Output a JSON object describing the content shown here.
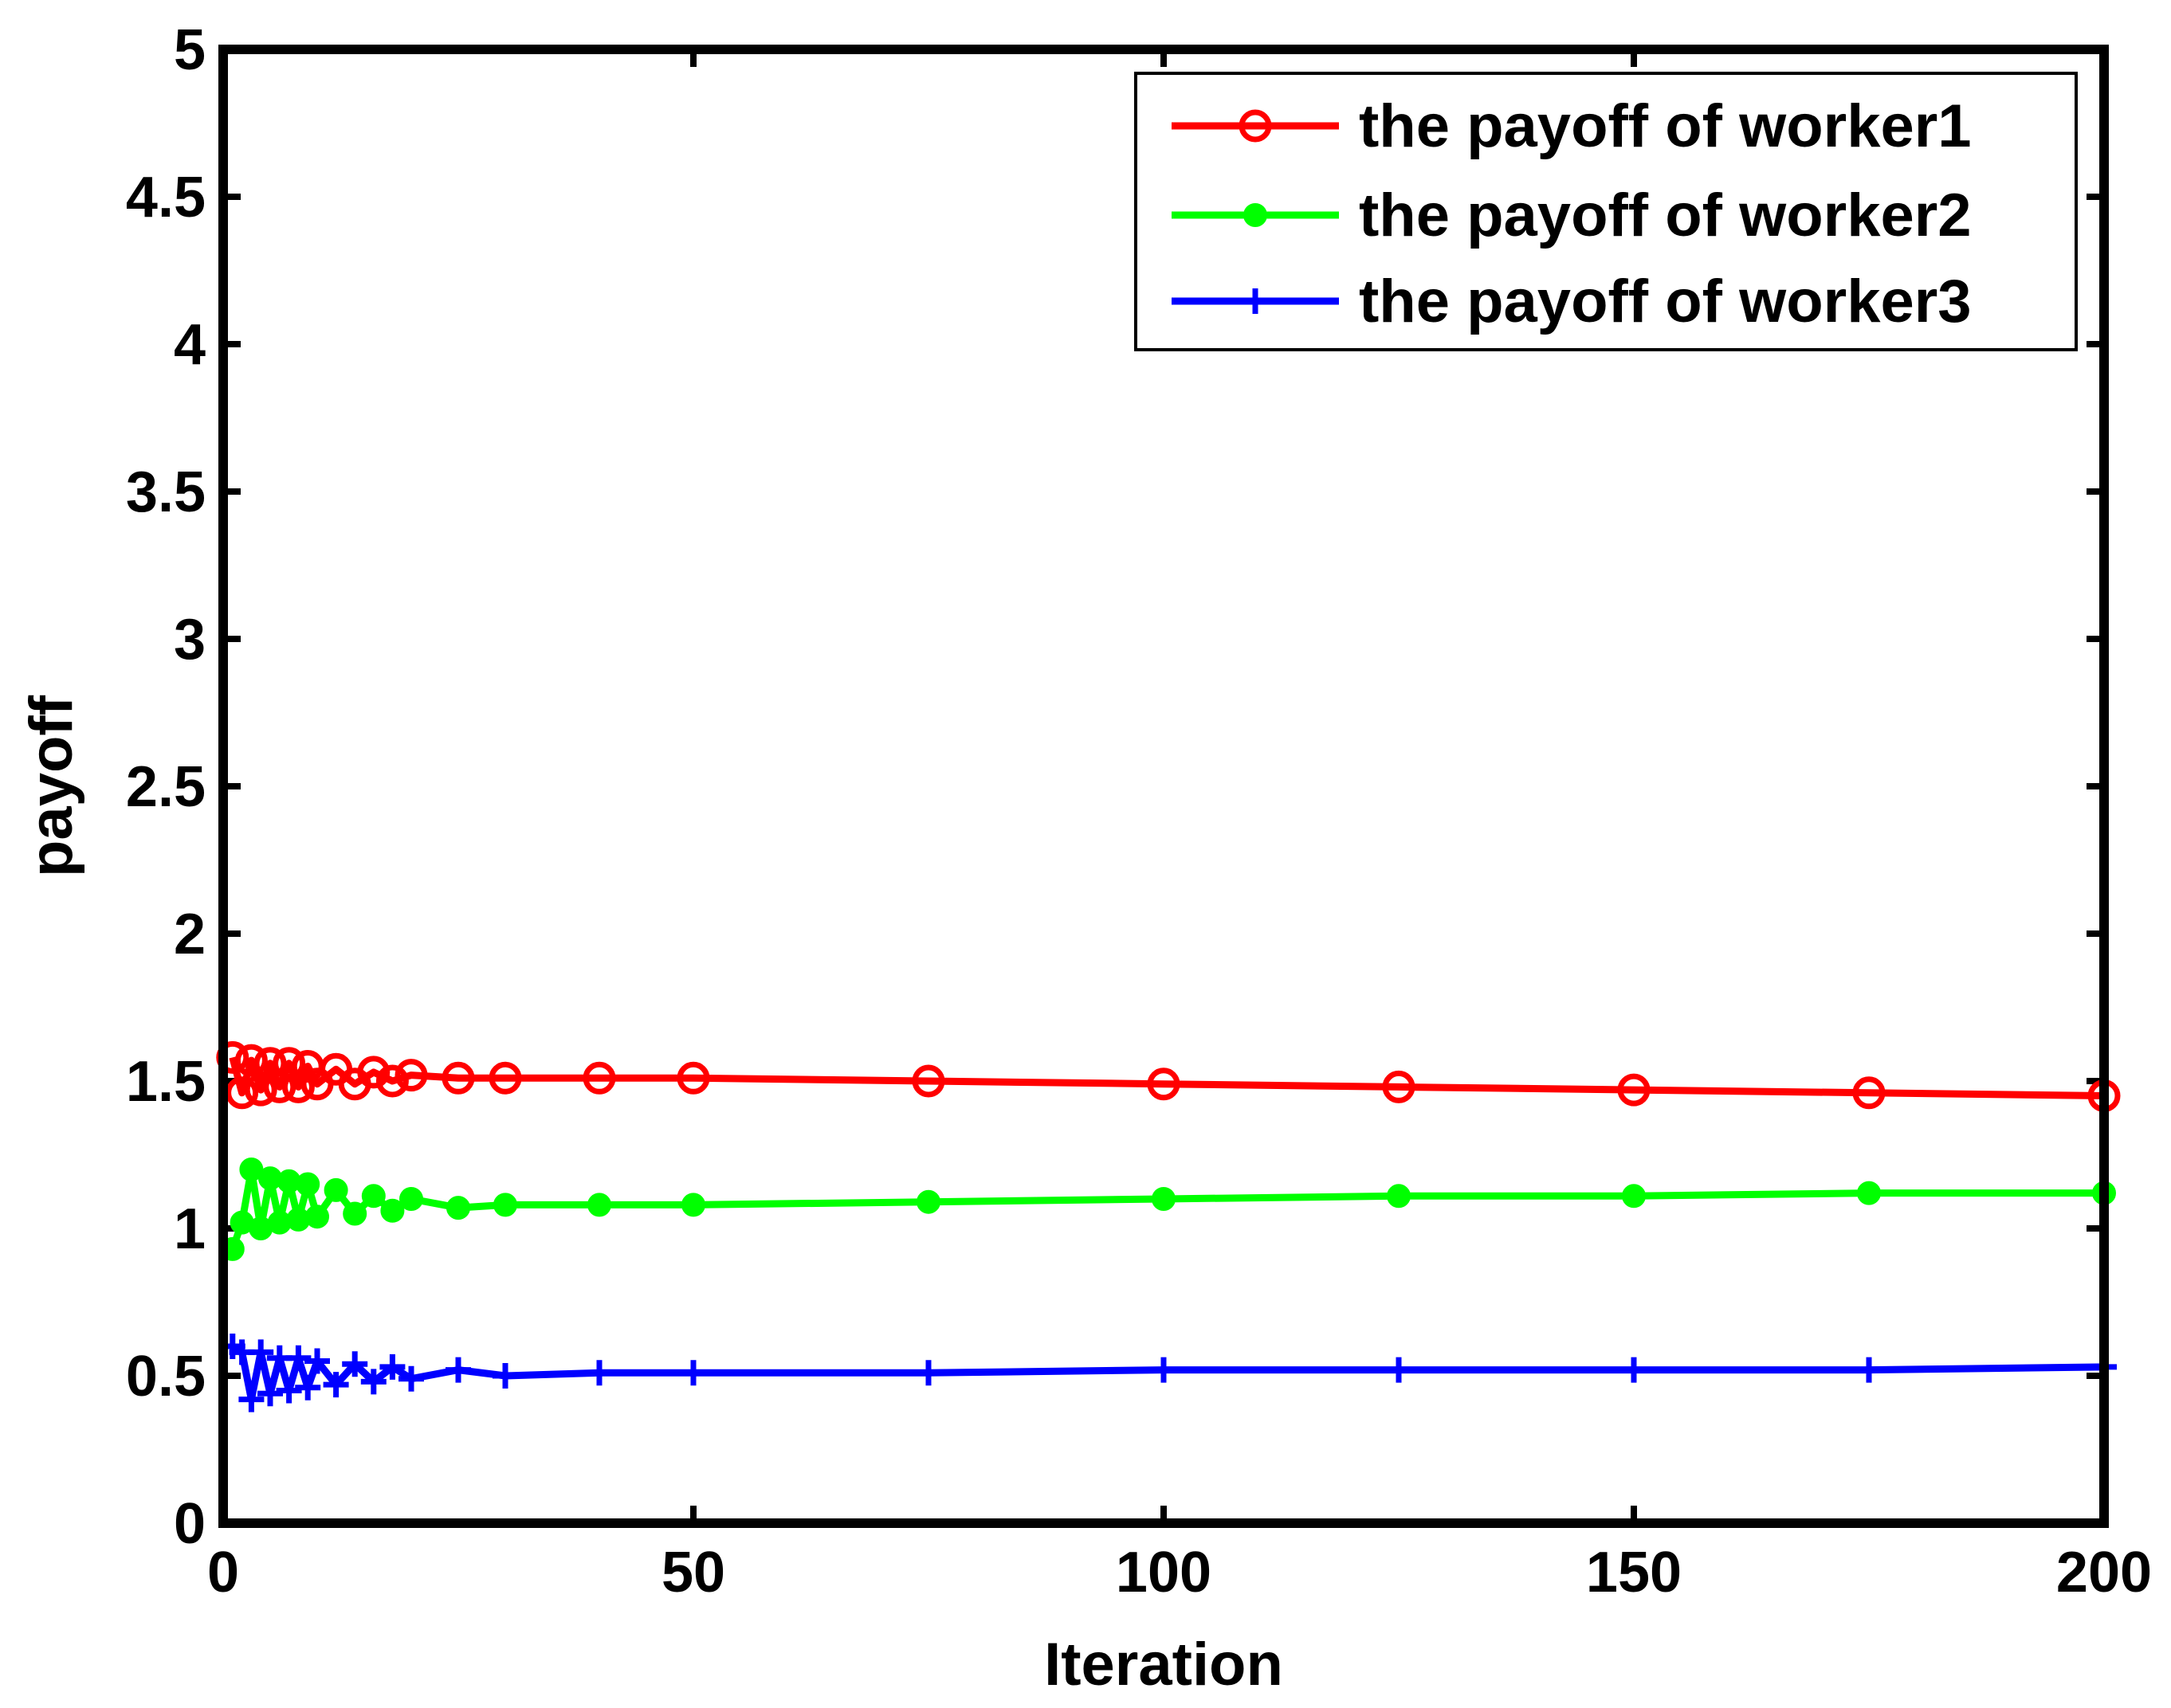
{
  "chart_data": {
    "type": "line",
    "title": "",
    "xlabel": "Iteration",
    "ylabel": "payoff",
    "xlim": [
      0,
      200
    ],
    "ylim": [
      0,
      5
    ],
    "xticks": [
      0,
      50,
      100,
      150,
      200
    ],
    "xtick_labels": [
      "0",
      "50",
      "100",
      "150",
      "200"
    ],
    "yticks": [
      0,
      0.5,
      1,
      1.5,
      2,
      2.5,
      3,
      3.5,
      4,
      4.5,
      5
    ],
    "ytick_labels": [
      "0",
      "0.5",
      "1",
      "1.5",
      "2",
      "2.5",
      "3",
      "3.5",
      "4",
      "4.5",
      "5"
    ],
    "grid": false,
    "legend_position": "top-right",
    "series": [
      {
        "name": "the payoff of worker1",
        "color": "#ff0000",
        "marker": "circle-open",
        "x": [
          1,
          2,
          3,
          4,
          5,
          6,
          7,
          8,
          9,
          10,
          12,
          14,
          16,
          18,
          20,
          25,
          30,
          40,
          50,
          75,
          100,
          125,
          150,
          175,
          200
        ],
        "y": [
          1.58,
          1.46,
          1.57,
          1.47,
          1.56,
          1.48,
          1.56,
          1.48,
          1.55,
          1.49,
          1.54,
          1.49,
          1.53,
          1.5,
          1.52,
          1.51,
          1.51,
          1.51,
          1.51,
          1.5,
          1.49,
          1.48,
          1.47,
          1.46,
          1.45
        ]
      },
      {
        "name": "the payoff of worker2",
        "color": "#00ff00",
        "marker": "dot",
        "x": [
          1,
          2,
          3,
          4,
          5,
          6,
          7,
          8,
          9,
          10,
          12,
          14,
          16,
          18,
          20,
          25,
          30,
          40,
          50,
          75,
          100,
          125,
          150,
          175,
          200
        ],
        "y": [
          0.93,
          1.02,
          1.2,
          1.0,
          1.17,
          1.02,
          1.16,
          1.03,
          1.15,
          1.04,
          1.13,
          1.05,
          1.11,
          1.06,
          1.1,
          1.07,
          1.08,
          1.08,
          1.08,
          1.09,
          1.1,
          1.11,
          1.11,
          1.12,
          1.12
        ]
      },
      {
        "name": "the payoff of worker3",
        "color": "#0000ff",
        "marker": "plus",
        "x": [
          1,
          2,
          3,
          4,
          5,
          6,
          7,
          8,
          9,
          10,
          12,
          14,
          16,
          18,
          20,
          25,
          30,
          40,
          50,
          75,
          100,
          125,
          150,
          175,
          200
        ],
        "y": [
          0.6,
          0.58,
          0.42,
          0.58,
          0.44,
          0.56,
          0.45,
          0.56,
          0.46,
          0.55,
          0.47,
          0.54,
          0.48,
          0.53,
          0.49,
          0.52,
          0.5,
          0.51,
          0.51,
          0.51,
          0.52,
          0.52,
          0.52,
          0.52,
          0.53
        ]
      }
    ]
  }
}
